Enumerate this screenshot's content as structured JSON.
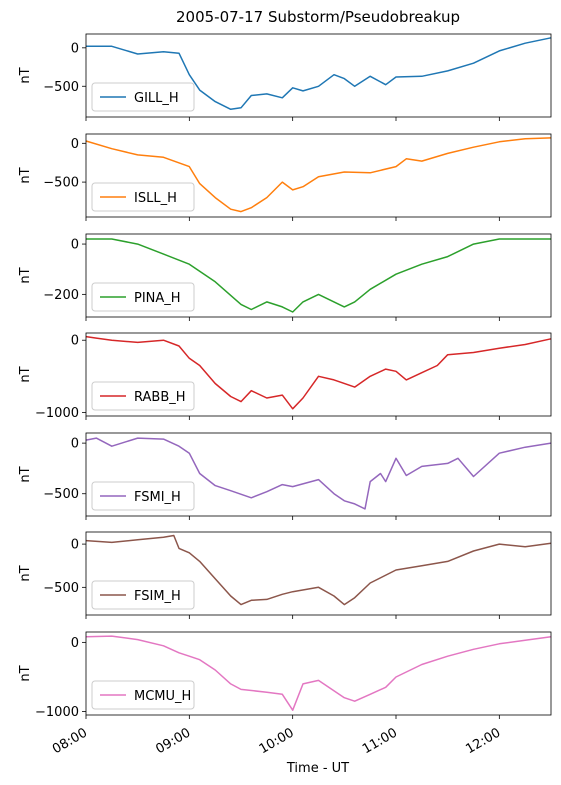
{
  "figure": {
    "title": "2005-07-17  Substorm/Pseudobreakup",
    "xlabel": "Time - UT",
    "x_ticks": [
      "08:00",
      "09:00",
      "10:00",
      "11:00",
      "12:00"
    ]
  },
  "chart_data": [
    {
      "type": "line",
      "name": "GILL_H",
      "color": "#1f77b4",
      "ylabel": "nT",
      "xlim": [
        8.0,
        12.5
      ],
      "ylim": [
        -900,
        180
      ],
      "y_ticks": [
        0,
        -500
      ],
      "legend": "lower-left",
      "x": [
        8.0,
        8.25,
        8.5,
        8.75,
        8.9,
        9.0,
        9.1,
        9.25,
        9.4,
        9.5,
        9.6,
        9.75,
        9.9,
        10.0,
        10.1,
        10.25,
        10.4,
        10.5,
        10.6,
        10.75,
        10.9,
        11.0,
        11.25,
        11.5,
        11.75,
        12.0,
        12.25,
        12.5
      ],
      "y": [
        20,
        20,
        -80,
        -50,
        -70,
        -350,
        -550,
        -700,
        -800,
        -780,
        -620,
        -600,
        -650,
        -520,
        -560,
        -500,
        -350,
        -400,
        -500,
        -370,
        -480,
        -380,
        -370,
        -300,
        -200,
        -40,
        60,
        130
      ]
    },
    {
      "type": "line",
      "name": "ISLL_H",
      "color": "#ff7f0e",
      "ylabel": "nT",
      "xlim": [
        8.0,
        12.5
      ],
      "ylim": [
        -950,
        120
      ],
      "y_ticks": [
        0,
        -500
      ],
      "legend": "lower-left",
      "x": [
        8.0,
        8.25,
        8.5,
        8.75,
        9.0,
        9.1,
        9.25,
        9.4,
        9.5,
        9.6,
        9.75,
        9.9,
        10.0,
        10.1,
        10.25,
        10.5,
        10.75,
        11.0,
        11.1,
        11.25,
        11.5,
        11.75,
        12.0,
        12.25,
        12.5
      ],
      "y": [
        30,
        -70,
        -150,
        -180,
        -300,
        -520,
        -700,
        -850,
        -880,
        -830,
        -700,
        -500,
        -600,
        -560,
        -430,
        -370,
        -380,
        -300,
        -200,
        -230,
        -130,
        -50,
        20,
        60,
        70
      ]
    },
    {
      "type": "line",
      "name": "PINA_H",
      "color": "#2ca02c",
      "ylabel": "nT",
      "xlim": [
        8.0,
        12.5
      ],
      "ylim": [
        -290,
        40
      ],
      "y_ticks": [
        0,
        -200
      ],
      "legend": "lower-left",
      "x": [
        8.0,
        8.25,
        8.5,
        8.75,
        9.0,
        9.25,
        9.5,
        9.6,
        9.75,
        9.9,
        10.0,
        10.1,
        10.25,
        10.5,
        10.6,
        10.75,
        11.0,
        11.25,
        11.5,
        11.75,
        12.0,
        12.25,
        12.5
      ],
      "y": [
        20,
        20,
        0,
        -40,
        -80,
        -150,
        -240,
        -260,
        -230,
        -250,
        -270,
        -230,
        -200,
        -250,
        -230,
        -180,
        -120,
        -80,
        -50,
        0,
        20,
        20,
        20
      ]
    },
    {
      "type": "line",
      "name": "RABB_H",
      "color": "#d62728",
      "ylabel": "nT",
      "xlim": [
        8.0,
        12.5
      ],
      "ylim": [
        -1050,
        100
      ],
      "y_ticks": [
        0,
        -1000
      ],
      "legend": "lower-left",
      "x": [
        8.0,
        8.1,
        8.25,
        8.5,
        8.75,
        8.9,
        9.0,
        9.1,
        9.25,
        9.4,
        9.5,
        9.6,
        9.75,
        9.9,
        10.0,
        10.1,
        10.25,
        10.4,
        10.6,
        10.75,
        10.9,
        11.0,
        11.1,
        11.25,
        11.4,
        11.5,
        11.75,
        12.0,
        12.25,
        12.5
      ],
      "y": [
        50,
        30,
        0,
        -30,
        0,
        -80,
        -250,
        -350,
        -600,
        -780,
        -850,
        -700,
        -800,
        -760,
        -950,
        -800,
        -500,
        -550,
        -650,
        -500,
        -400,
        -430,
        -550,
        -450,
        -350,
        -200,
        -170,
        -110,
        -60,
        20
      ]
    },
    {
      "type": "line",
      "name": "FSMI_H",
      "color": "#9467bd",
      "ylabel": "nT",
      "xlim": [
        8.0,
        12.5
      ],
      "ylim": [
        -720,
        100
      ],
      "y_ticks": [
        0,
        -500
      ],
      "legend": "lower-left",
      "x": [
        8.0,
        8.1,
        8.25,
        8.5,
        8.75,
        8.9,
        9.0,
        9.1,
        9.25,
        9.4,
        9.6,
        9.75,
        9.9,
        10.0,
        10.25,
        10.4,
        10.5,
        10.6,
        10.7,
        10.75,
        10.85,
        10.9,
        11.0,
        11.1,
        11.25,
        11.5,
        11.6,
        11.75,
        12.0,
        12.25,
        12.5
      ],
      "y": [
        30,
        50,
        -30,
        50,
        40,
        -30,
        -100,
        -300,
        -420,
        -470,
        -540,
        -480,
        -410,
        -430,
        -360,
        -500,
        -570,
        -600,
        -650,
        -380,
        -300,
        -380,
        -150,
        -320,
        -230,
        -200,
        -150,
        -330,
        -100,
        -40,
        0
      ]
    },
    {
      "type": "line",
      "name": "FSIM_H",
      "color": "#8c564b",
      "ylabel": "nT",
      "xlim": [
        8.0,
        12.5
      ],
      "ylim": [
        -820,
        140
      ],
      "y_ticks": [
        0,
        -500
      ],
      "legend": "lower-left",
      "x": [
        8.0,
        8.25,
        8.5,
        8.75,
        8.85,
        8.9,
        9.0,
        9.1,
        9.25,
        9.4,
        9.5,
        9.6,
        9.75,
        9.9,
        10.0,
        10.25,
        10.4,
        10.5,
        10.6,
        10.75,
        11.0,
        11.25,
        11.5,
        11.75,
        12.0,
        12.25,
        12.5
      ],
      "y": [
        40,
        20,
        50,
        80,
        100,
        -50,
        -100,
        -200,
        -400,
        -600,
        -700,
        -650,
        -640,
        -580,
        -550,
        -500,
        -600,
        -700,
        -620,
        -450,
        -300,
        -250,
        -200,
        -80,
        0,
        -30,
        10
      ]
    },
    {
      "type": "line",
      "name": "MCMU_H",
      "color": "#e377c2",
      "ylabel": "nT",
      "xlim": [
        8.0,
        12.5
      ],
      "ylim": [
        -1050,
        150
      ],
      "y_ticks": [
        0,
        -1000
      ],
      "legend": "lower-left",
      "x": [
        8.0,
        8.25,
        8.5,
        8.75,
        8.9,
        9.0,
        9.1,
        9.25,
        9.4,
        9.5,
        9.75,
        9.9,
        10.0,
        10.1,
        10.25,
        10.5,
        10.6,
        10.75,
        10.9,
        11.0,
        11.25,
        11.5,
        11.75,
        12.0,
        12.25,
        12.5
      ],
      "y": [
        80,
        90,
        40,
        -50,
        -150,
        -200,
        -250,
        -400,
        -600,
        -680,
        -720,
        -750,
        -980,
        -600,
        -550,
        -800,
        -850,
        -750,
        -650,
        -500,
        -320,
        -200,
        -100,
        -20,
        30,
        80
      ]
    }
  ]
}
